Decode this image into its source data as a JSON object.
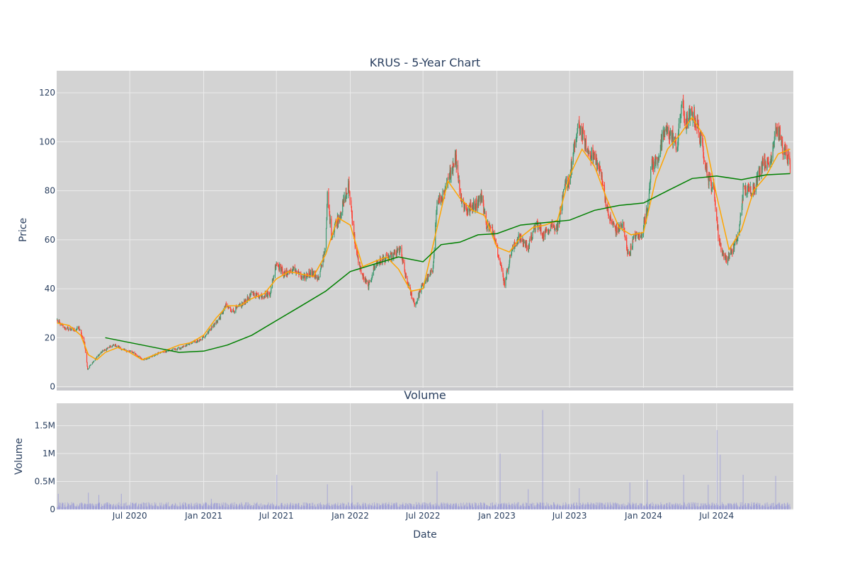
{
  "chart_data": [
    {
      "type": "candlestick",
      "title": "KRUS - 5-Year Chart",
      "ylabel": "Price",
      "ylim": [
        -1,
        129
      ],
      "xlim": [
        "2020-01-01",
        "2025-01-08"
      ],
      "y_ticks": [
        0,
        20,
        40,
        60,
        80,
        100,
        120
      ],
      "x_ticks": [
        "2020-07-01",
        "2021-01-01",
        "2021-07-01",
        "2022-01-01",
        "2022-07-01",
        "2023-01-01",
        "2023-07-01",
        "2024-01-01",
        "2024-07-01"
      ],
      "grid": true,
      "colors": {
        "up": "#3d9970",
        "down": "#ff4136",
        "ma_short": "#ffa500",
        "ma_long": "#008000",
        "plot_bg": "#d3d3d3",
        "grid": "#ebebeb"
      },
      "price_path": [
        [
          "2020-01-02",
          27
        ],
        [
          "2020-01-20",
          24
        ],
        [
          "2020-02-15",
          23
        ],
        [
          "2020-02-25",
          24
        ],
        [
          "2020-03-10",
          18
        ],
        [
          "2020-03-18",
          7
        ],
        [
          "2020-03-25",
          9
        ],
        [
          "2020-04-05",
          11
        ],
        [
          "2020-04-20",
          14
        ],
        [
          "2020-05-10",
          16
        ],
        [
          "2020-05-25",
          17
        ],
        [
          "2020-06-15",
          15
        ],
        [
          "2020-07-10",
          14
        ],
        [
          "2020-08-01",
          11
        ],
        [
          "2020-08-20",
          12
        ],
        [
          "2020-09-15",
          14
        ],
        [
          "2020-10-15",
          15
        ],
        [
          "2020-11-10",
          16
        ],
        [
          "2020-12-01",
          18
        ],
        [
          "2020-12-25",
          19
        ],
        [
          "2021-01-10",
          22
        ],
        [
          "2021-01-25",
          25
        ],
        [
          "2021-02-10",
          28
        ],
        [
          "2021-02-25",
          33
        ],
        [
          "2021-03-15",
          31
        ],
        [
          "2021-04-10",
          34
        ],
        [
          "2021-05-01",
          38
        ],
        [
          "2021-05-20",
          37
        ],
        [
          "2021-06-15",
          38
        ],
        [
          "2021-07-01",
          51
        ],
        [
          "2021-07-20",
          46
        ],
        [
          "2021-08-15",
          48
        ],
        [
          "2021-09-05",
          44
        ],
        [
          "2021-09-25",
          47
        ],
        [
          "2021-10-15",
          44
        ],
        [
          "2021-11-01",
          58
        ],
        [
          "2021-11-05",
          78
        ],
        [
          "2021-11-15",
          62
        ],
        [
          "2021-11-25",
          66
        ],
        [
          "2021-12-10",
          72
        ],
        [
          "2021-12-28",
          82
        ],
        [
          "2022-01-15",
          55
        ],
        [
          "2022-02-01",
          45
        ],
        [
          "2022-02-15",
          41
        ],
        [
          "2022-03-05",
          50
        ],
        [
          "2022-03-25",
          52
        ],
        [
          "2022-04-15",
          53
        ],
        [
          "2022-05-05",
          56
        ],
        [
          "2022-05-20",
          44
        ],
        [
          "2022-06-01",
          38
        ],
        [
          "2022-06-12",
          33
        ],
        [
          "2022-06-25",
          40
        ],
        [
          "2022-07-10",
          44
        ],
        [
          "2022-07-25",
          47
        ],
        [
          "2022-08-05",
          75
        ],
        [
          "2022-08-25",
          79
        ],
        [
          "2022-09-10",
          89
        ],
        [
          "2022-09-20",
          94
        ],
        [
          "2022-10-05",
          76
        ],
        [
          "2022-10-20",
          72
        ],
        [
          "2022-11-05",
          74
        ],
        [
          "2022-11-25",
          78
        ],
        [
          "2022-12-05",
          66
        ],
        [
          "2022-12-25",
          63
        ],
        [
          "2023-01-10",
          50
        ],
        [
          "2023-01-20",
          42
        ],
        [
          "2023-02-05",
          55
        ],
        [
          "2023-02-25",
          61
        ],
        [
          "2023-03-20",
          57
        ],
        [
          "2023-04-10",
          67
        ],
        [
          "2023-04-25",
          62
        ],
        [
          "2023-05-15",
          66
        ],
        [
          "2023-06-01",
          65
        ],
        [
          "2023-06-20",
          82
        ],
        [
          "2023-07-01",
          85
        ],
        [
          "2023-07-15",
          100
        ],
        [
          "2023-07-25",
          107
        ],
        [
          "2023-08-15",
          96
        ],
        [
          "2023-09-01",
          94
        ],
        [
          "2023-09-20",
          85
        ],
        [
          "2023-10-05",
          70
        ],
        [
          "2023-10-25",
          64
        ],
        [
          "2023-11-10",
          66
        ],
        [
          "2023-11-25",
          53
        ],
        [
          "2023-12-10",
          62
        ],
        [
          "2023-12-25",
          61
        ],
        [
          "2024-01-10",
          72
        ],
        [
          "2024-01-20",
          90
        ],
        [
          "2024-02-05",
          93
        ],
        [
          "2024-02-25",
          105
        ],
        [
          "2024-03-10",
          103
        ],
        [
          "2024-03-25",
          98
        ],
        [
          "2024-04-05",
          116
        ],
        [
          "2024-04-15",
          107
        ],
        [
          "2024-05-01",
          112
        ],
        [
          "2024-05-15",
          106
        ],
        [
          "2024-05-28",
          97
        ],
        [
          "2024-06-10",
          85
        ],
        [
          "2024-06-25",
          80
        ],
        [
          "2024-07-05",
          62
        ],
        [
          "2024-07-15",
          55
        ],
        [
          "2024-07-25",
          52
        ],
        [
          "2024-08-10",
          56
        ],
        [
          "2024-08-25",
          62
        ],
        [
          "2024-09-05",
          80
        ],
        [
          "2024-09-20",
          80
        ],
        [
          "2024-10-05",
          82
        ],
        [
          "2024-10-25",
          93
        ],
        [
          "2024-11-10",
          90
        ],
        [
          "2024-11-25",
          106
        ],
        [
          "2024-12-05",
          103
        ],
        [
          "2024-12-15",
          96
        ],
        [
          "2024-12-31",
          91
        ]
      ],
      "series": [
        {
          "type": "line",
          "x": [
            "2020-01-02",
            "2020-02-01",
            "2020-03-01",
            "2020-03-20",
            "2020-04-10",
            "2020-05-01",
            "2020-06-01",
            "2020-07-01",
            "2020-08-01",
            "2020-09-01",
            "2020-10-01",
            "2020-11-01",
            "2020-12-01",
            "2021-01-01",
            "2021-02-01",
            "2021-03-01",
            "2021-04-01",
            "2021-05-01",
            "2021-06-01",
            "2021-07-01",
            "2021-08-01",
            "2021-09-01",
            "2021-10-01",
            "2021-11-01",
            "2021-12-01",
            "2022-01-01",
            "2022-02-01",
            "2022-03-01",
            "2022-04-01",
            "2022-05-01",
            "2022-06-01",
            "2022-07-01",
            "2022-08-01",
            "2022-09-01",
            "2022-10-01",
            "2022-11-01",
            "2022-12-01",
            "2023-01-01",
            "2023-02-01",
            "2023-03-01",
            "2023-04-01",
            "2023-05-01",
            "2023-06-01",
            "2023-07-01",
            "2023-08-01",
            "2023-09-01",
            "2023-10-01",
            "2023-11-01",
            "2023-12-01",
            "2024-01-01",
            "2024-02-01",
            "2024-03-01",
            "2024-04-01",
            "2024-05-01",
            "2024-06-01",
            "2024-07-01",
            "2024-08-01",
            "2024-09-01",
            "2024-10-01",
            "2024-11-01",
            "2024-12-01",
            "2024-12-31"
          ],
          "values": [
            26,
            25,
            21,
            13,
            11,
            14,
            16,
            14,
            11,
            13,
            15,
            17,
            18,
            21,
            28,
            33,
            33,
            36,
            38,
            44,
            47,
            46,
            45,
            54,
            69,
            66,
            49,
            51,
            53,
            48,
            39,
            40,
            62,
            84,
            77,
            72,
            70,
            57,
            55,
            61,
            65,
            66,
            68,
            86,
            97,
            90,
            77,
            65,
            62,
            63,
            85,
            97,
            103,
            110,
            102,
            78,
            56,
            64,
            80,
            86,
            95,
            97
          ]
        },
        {
          "type": "line",
          "x": [
            "2020-05-01",
            "2020-07-01",
            "2020-09-01",
            "2020-11-01",
            "2021-01-01",
            "2021-03-01",
            "2021-05-01",
            "2021-07-01",
            "2021-09-01",
            "2021-11-01",
            "2022-01-01",
            "2022-03-01",
            "2022-05-01",
            "2022-07-01",
            "2022-08-15",
            "2022-10-01",
            "2022-11-15",
            "2023-01-01",
            "2023-03-01",
            "2023-05-01",
            "2023-07-01",
            "2023-09-01",
            "2023-11-01",
            "2024-01-01",
            "2024-03-01",
            "2024-05-01",
            "2024-07-01",
            "2024-09-01",
            "2024-11-01",
            "2024-12-31"
          ],
          "values": [
            20,
            18,
            16,
            14,
            14.5,
            17,
            21,
            27,
            33,
            39,
            47,
            50,
            53,
            51,
            58,
            59,
            62,
            62.5,
            66,
            67,
            68,
            72,
            74,
            75,
            80,
            85,
            86,
            84.5,
            86.5,
            87
          ]
        }
      ]
    },
    {
      "type": "bar",
      "title": "Volume",
      "xlabel": "Date",
      "ylabel": "Volume",
      "ylim": [
        0,
        1900000
      ],
      "y_ticks": [
        0,
        500000,
        1000000,
        1500000
      ],
      "y_tick_labels": [
        "0",
        "0.5M",
        "1M",
        "1.5M"
      ],
      "x_tick_labels": [
        "Jul 2020",
        "Jan 2021",
        "Jul 2021",
        "Jan 2022",
        "Jul 2022",
        "Jan 2023",
        "Jul 2023",
        "Jan 2024",
        "Jul 2024"
      ],
      "bar_color": "#8a8ad8",
      "volume_spikes": [
        [
          "2020-01-05",
          280000
        ],
        [
          "2020-03-20",
          300000
        ],
        [
          "2020-04-15",
          260000
        ],
        [
          "2020-06-10",
          280000
        ],
        [
          "2021-01-20",
          190000
        ],
        [
          "2021-07-02",
          620000
        ],
        [
          "2021-11-05",
          450000
        ],
        [
          "2022-01-05",
          430000
        ],
        [
          "2022-08-05",
          680000
        ],
        [
          "2023-01-09",
          1000000
        ],
        [
          "2023-03-20",
          360000
        ],
        [
          "2023-04-25",
          1780000
        ],
        [
          "2023-07-25",
          380000
        ],
        [
          "2023-11-28",
          480000
        ],
        [
          "2024-01-10",
          530000
        ],
        [
          "2024-04-10",
          620000
        ],
        [
          "2024-06-10",
          440000
        ],
        [
          "2024-07-02",
          1420000
        ],
        [
          "2024-07-10",
          980000
        ],
        [
          "2024-09-05",
          620000
        ],
        [
          "2024-11-25",
          600000
        ]
      ]
    }
  ]
}
